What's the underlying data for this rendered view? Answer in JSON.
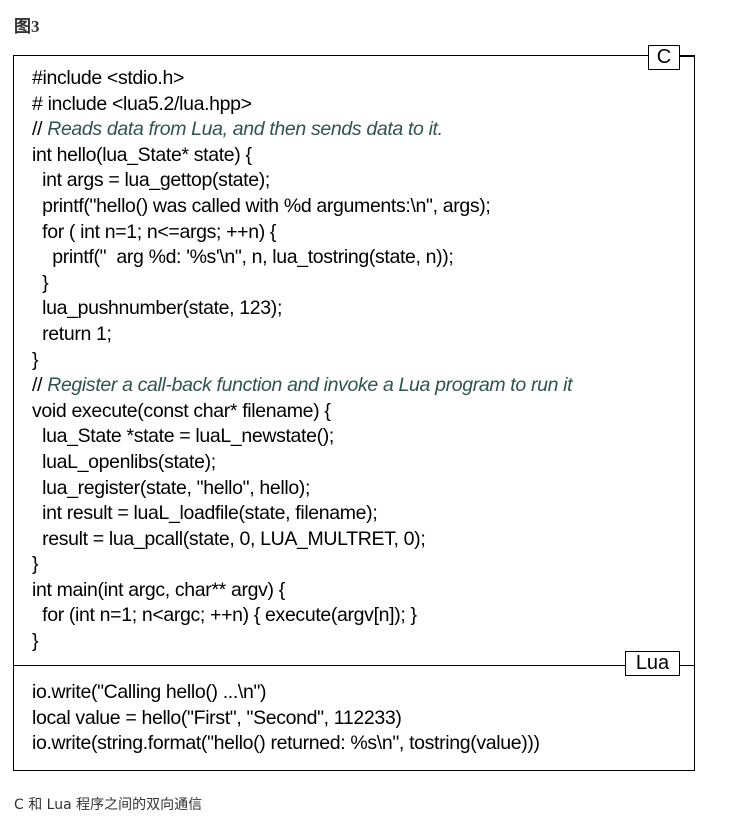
{
  "figure_label": "图3",
  "c_section": {
    "tag": "C",
    "lines": [
      {
        "text": "#include <stdio.h>"
      },
      {
        "text": "# include <lua5.2/lua.hpp>"
      },
      {
        "slashes": "//",
        "comment": " Reads data from Lua, and then sends data to it."
      },
      {
        "text": "int hello(lua_State* state) {"
      },
      {
        "text": "  int args = lua_gettop(state);"
      },
      {
        "text": "  printf(\"hello() was called with %d arguments:\\n\", args);"
      },
      {
        "text": "  for ( int n=1; n<=args; ++n) {"
      },
      {
        "text": "    printf(\"  arg %d: '%s'\\n\", n, lua_tostring(state, n));"
      },
      {
        "text": "  }"
      },
      {
        "text": "  lua_pushnumber(state, 123);"
      },
      {
        "text": "  return 1;"
      },
      {
        "text": "}"
      },
      {
        "slashes": "//",
        "comment": " Register a call-back function and invoke a Lua program to run it"
      },
      {
        "text": "void execute(const char* filename) {"
      },
      {
        "text": "  lua_State *state = luaL_newstate();"
      },
      {
        "text": "  luaL_openlibs(state);"
      },
      {
        "text": "  lua_register(state, \"hello\", hello);"
      },
      {
        "text": "  int result = luaL_loadfile(state, filename);"
      },
      {
        "text": "  result = lua_pcall(state, 0, LUA_MULTRET, 0);"
      },
      {
        "text": "}"
      },
      {
        "text": "int main(int argc, char** argv) {"
      },
      {
        "text": "  for (int n=1; n<argc; ++n) { execute(argv[n]); }"
      },
      {
        "text": "}"
      }
    ]
  },
  "lua_section": {
    "tag": "Lua",
    "lines": [
      {
        "text": "io.write(\"Calling hello() ...\\n\")"
      },
      {
        "text": "local value = hello(\"First\", \"Second\", 112233)"
      },
      {
        "text": "io.write(string.format(\"hello() returned: %s\\n\", tostring(value)))"
      }
    ]
  },
  "caption": "C 和 Lua 程序之间的双向通信",
  "colors": {
    "comment_text": "#2e5450",
    "border": "#000000"
  }
}
